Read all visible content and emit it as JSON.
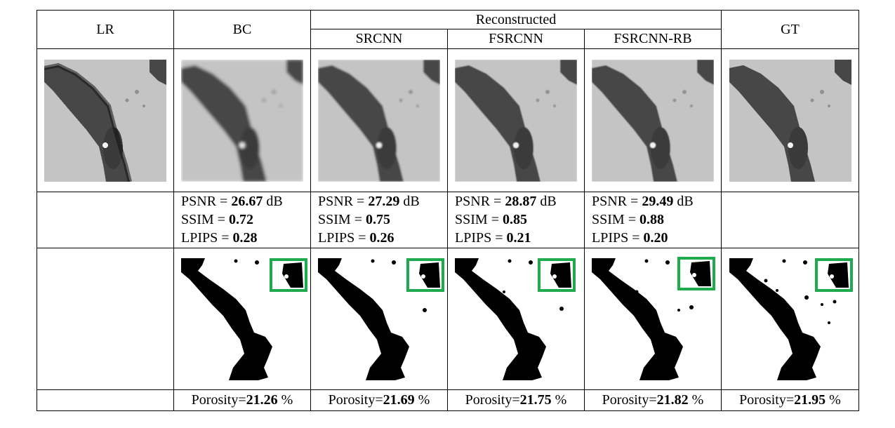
{
  "header": {
    "group": "Reconstructed",
    "cols": [
      "LR",
      "BC",
      "SRCNN",
      "FSRCNN",
      "FSRCNN-RB",
      "GT"
    ]
  },
  "metric_labels": {
    "psnr": "PSNR = ",
    "psnr_unit": " dB",
    "ssim": "SSIM = ",
    "lpips": "LPIPS = ",
    "porosity": "Porosity=",
    "porosity_unit": " %"
  },
  "metrics": {
    "bc": {
      "psnr": "26.67",
      "ssim": "0.72",
      "lpips": "0.28"
    },
    "srcnn": {
      "psnr": "27.29",
      "ssim": "0.75",
      "lpips": "0.26"
    },
    "fsrcnn": {
      "psnr": "28.87",
      "ssim": "0.85",
      "lpips": "0.21"
    },
    "fsrcnnrb": {
      "psnr": "29.49",
      "ssim": "0.88",
      "lpips": "0.20"
    }
  },
  "porosity": {
    "bc": "21.26",
    "srcnn": "21.69",
    "fsrcnn": "21.75",
    "fsrcnnrb": "21.82",
    "gt": "21.95"
  },
  "colors": {
    "highlight_box": "#1faa4e",
    "grain": "#c4c4c4",
    "pore": "#474747"
  }
}
